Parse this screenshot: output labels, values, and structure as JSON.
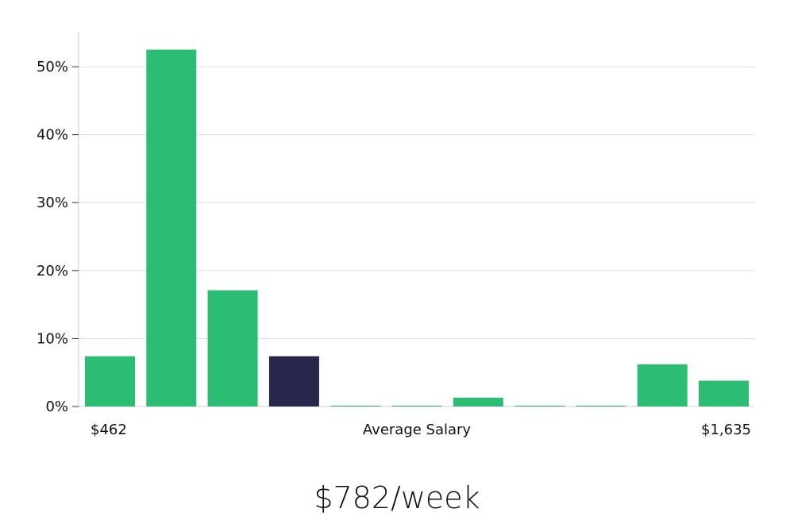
{
  "headline": "$782/week",
  "colors": {
    "bar": "#2bbd74",
    "highlight": "#28264a",
    "grid": "#dcdcdc",
    "axis": "#cfcfcf"
  },
  "chart_data": {
    "type": "bar",
    "y_tick_labels": [
      "0%",
      "10%",
      "20%",
      "30%",
      "40%",
      "50%"
    ],
    "y_ticks": [
      0,
      10,
      20,
      30,
      40,
      50
    ],
    "ylim": [
      0,
      55
    ],
    "grid": true,
    "values": [
      7.4,
      52.5,
      17.1,
      7.4,
      0.1,
      0.1,
      1.3,
      0.1,
      0.1,
      6.2,
      3.8
    ],
    "highlight_index": 3,
    "x_labels": {
      "left": "$462",
      "center": "Average Salary",
      "right": "$1,635"
    }
  }
}
